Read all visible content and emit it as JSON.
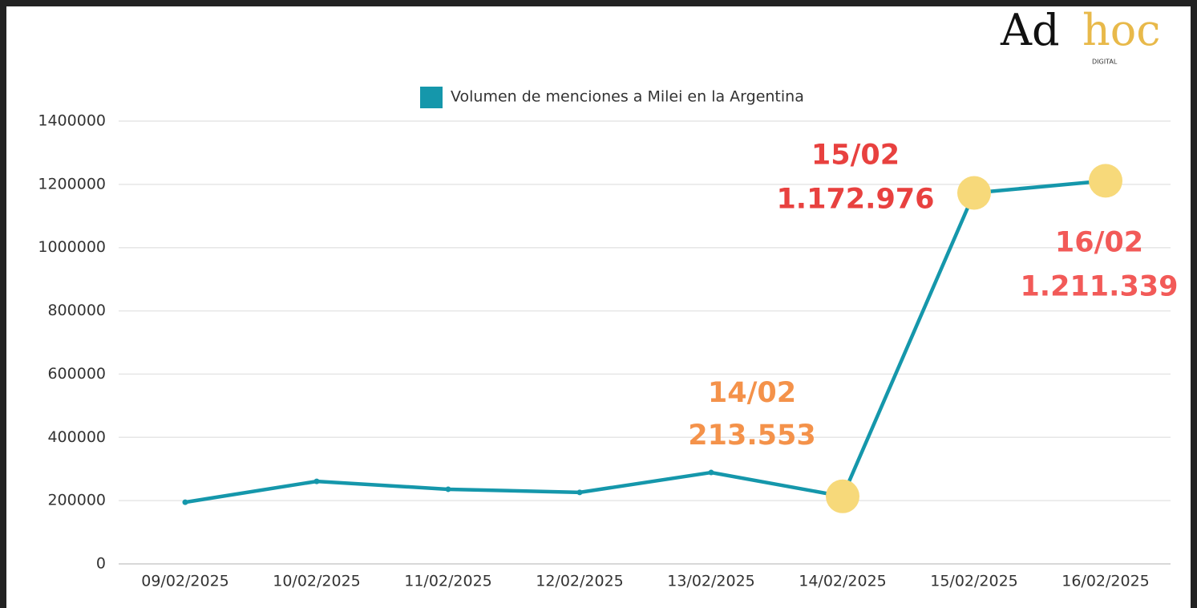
{
  "chart_data": {
    "type": "line",
    "logo": {
      "first": "Ad",
      "second": "hoc",
      "sub": "DIGITAL"
    },
    "categories": [
      "09/02/2025",
      "10/02/2025",
      "11/02/2025",
      "12/02/2025",
      "13/02/2025",
      "14/02/2025",
      "15/02/2025",
      "16/02/2025"
    ],
    "series": [
      {
        "name": "Volumen de menciones a Milei en la Argentina",
        "color": "#1597ab",
        "values": [
          195000,
          261000,
          236000,
          226000,
          289000,
          213553,
          1172976,
          1211339
        ],
        "value_labels": [
          null,
          null,
          null,
          null,
          null,
          "213.553",
          "1.172.976",
          "1.211.339"
        ],
        "point_dates": [
          null,
          null,
          null,
          null,
          null,
          "14/02",
          "15/02",
          "16/02"
        ],
        "label_colors": [
          null,
          null,
          null,
          null,
          null,
          "#f4924a",
          "#e8413f",
          "#f25a58"
        ],
        "highlight_color": "#f7d97a"
      }
    ],
    "ylim": [
      0,
      1400000
    ],
    "yticks": [
      0,
      200000,
      400000,
      600000,
      800000,
      1000000,
      1200000,
      1400000
    ],
    "grid": true,
    "legend": "top"
  }
}
